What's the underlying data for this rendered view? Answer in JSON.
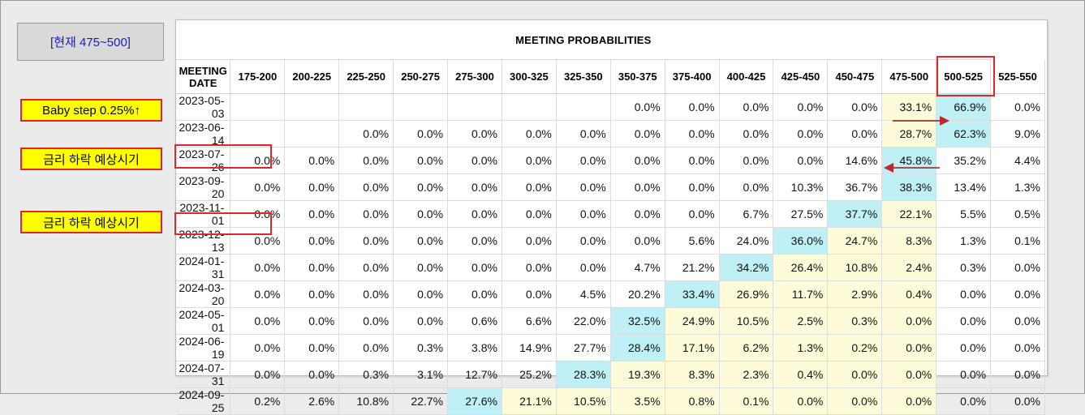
{
  "current_label": "[현재 475~500]",
  "annotations": {
    "baby_step": "Baby step 0.25%↑",
    "rate_cut_1": "금리 하락 예상시기",
    "rate_cut_2": "금리 하락 예상시기"
  },
  "colors": {
    "current_range": "#fdfbd9",
    "max_probability": "#bff0f5",
    "marker": "#e0262b",
    "label_bg": "#ffff00",
    "arrow": "#8b1a1a"
  },
  "table": {
    "title": "MEETING PROBABILITIES",
    "headers": [
      "MEETING DATE",
      "175-200",
      "200-225",
      "225-250",
      "250-275",
      "275-300",
      "300-325",
      "325-350",
      "350-375",
      "375-400",
      "400-425",
      "425-450",
      "450-475",
      "475-500",
      "500-525",
      "525-550"
    ],
    "rows": [
      {
        "date": "2023-05-03",
        "values": [
          "",
          "",
          "",
          "",
          "",
          "",
          "",
          "0.0%",
          "0.0%",
          "0.0%",
          "0.0%",
          "0.0%",
          "33.1%",
          "66.9%",
          "0.0%"
        ],
        "current": [
          12
        ],
        "max": [
          13
        ]
      },
      {
        "date": "2023-06-14",
        "values": [
          "",
          "",
          "0.0%",
          "0.0%",
          "0.0%",
          "0.0%",
          "0.0%",
          "0.0%",
          "0.0%",
          "0.0%",
          "0.0%",
          "0.0%",
          "28.7%",
          "62.3%",
          "9.0%"
        ],
        "current": [
          12
        ],
        "max": [
          13
        ]
      },
      {
        "date": "2023-07-26",
        "values": [
          "0.0%",
          "0.0%",
          "0.0%",
          "0.0%",
          "0.0%",
          "0.0%",
          "0.0%",
          "0.0%",
          "0.0%",
          "0.0%",
          "0.0%",
          "14.6%",
          "45.8%",
          "35.2%",
          "4.4%"
        ],
        "current": [],
        "max": [
          12
        ]
      },
      {
        "date": "2023-09-20",
        "values": [
          "0.0%",
          "0.0%",
          "0.0%",
          "0.0%",
          "0.0%",
          "0.0%",
          "0.0%",
          "0.0%",
          "0.0%",
          "0.0%",
          "10.3%",
          "36.7%",
          "38.3%",
          "13.4%",
          "1.3%"
        ],
        "current": [],
        "max": [
          12
        ]
      },
      {
        "date": "2023-11-01",
        "values": [
          "0.0%",
          "0.0%",
          "0.0%",
          "0.0%",
          "0.0%",
          "0.0%",
          "0.0%",
          "0.0%",
          "0.0%",
          "6.7%",
          "27.5%",
          "37.7%",
          "22.1%",
          "5.5%",
          "0.5%"
        ],
        "current": [
          12
        ],
        "max": [
          11
        ]
      },
      {
        "date": "2023-12-13",
        "values": [
          "0.0%",
          "0.0%",
          "0.0%",
          "0.0%",
          "0.0%",
          "0.0%",
          "0.0%",
          "0.0%",
          "5.6%",
          "24.0%",
          "36.0%",
          "24.7%",
          "8.3%",
          "1.3%",
          "0.1%"
        ],
        "current": [
          11,
          12
        ],
        "max": [
          10
        ]
      },
      {
        "date": "2024-01-31",
        "values": [
          "0.0%",
          "0.0%",
          "0.0%",
          "0.0%",
          "0.0%",
          "0.0%",
          "0.0%",
          "4.7%",
          "21.2%",
          "34.2%",
          "26.4%",
          "10.8%",
          "2.4%",
          "0.3%",
          "0.0%"
        ],
        "current": [
          10,
          11,
          12
        ],
        "max": [
          9
        ]
      },
      {
        "date": "2024-03-20",
        "values": [
          "0.0%",
          "0.0%",
          "0.0%",
          "0.0%",
          "0.0%",
          "0.0%",
          "4.5%",
          "20.2%",
          "33.4%",
          "26.9%",
          "11.7%",
          "2.9%",
          "0.4%",
          "0.0%",
          "0.0%"
        ],
        "current": [
          9,
          10,
          11,
          12
        ],
        "max": [
          8
        ]
      },
      {
        "date": "2024-05-01",
        "values": [
          "0.0%",
          "0.0%",
          "0.0%",
          "0.0%",
          "0.6%",
          "6.6%",
          "22.0%",
          "32.5%",
          "24.9%",
          "10.5%",
          "2.5%",
          "0.3%",
          "0.0%",
          "0.0%",
          "0.0%"
        ],
        "current": [
          8,
          9,
          10,
          11,
          12
        ],
        "max": [
          7
        ]
      },
      {
        "date": "2024-06-19",
        "values": [
          "0.0%",
          "0.0%",
          "0.0%",
          "0.3%",
          "3.8%",
          "14.9%",
          "27.7%",
          "28.4%",
          "17.1%",
          "6.2%",
          "1.3%",
          "0.2%",
          "0.0%",
          "0.0%",
          "0.0%"
        ],
        "current": [
          8,
          9,
          10,
          11,
          12
        ],
        "max": [
          7
        ]
      },
      {
        "date": "2024-07-31",
        "values": [
          "0.0%",
          "0.0%",
          "0.3%",
          "3.1%",
          "12.7%",
          "25.2%",
          "28.3%",
          "19.3%",
          "8.3%",
          "2.3%",
          "0.4%",
          "0.0%",
          "0.0%",
          "0.0%",
          "0.0%"
        ],
        "current": [
          7,
          8,
          9,
          10,
          11,
          12
        ],
        "max": [
          6
        ]
      },
      {
        "date": "2024-09-25",
        "values": [
          "0.2%",
          "2.6%",
          "10.8%",
          "22.7%",
          "27.6%",
          "21.1%",
          "10.5%",
          "3.5%",
          "0.8%",
          "0.1%",
          "0.0%",
          "0.0%",
          "0.0%",
          "0.0%",
          "0.0%"
        ],
        "current": [
          5,
          6,
          7,
          8,
          9,
          10,
          11,
          12
        ],
        "max": [
          4
        ]
      }
    ]
  }
}
